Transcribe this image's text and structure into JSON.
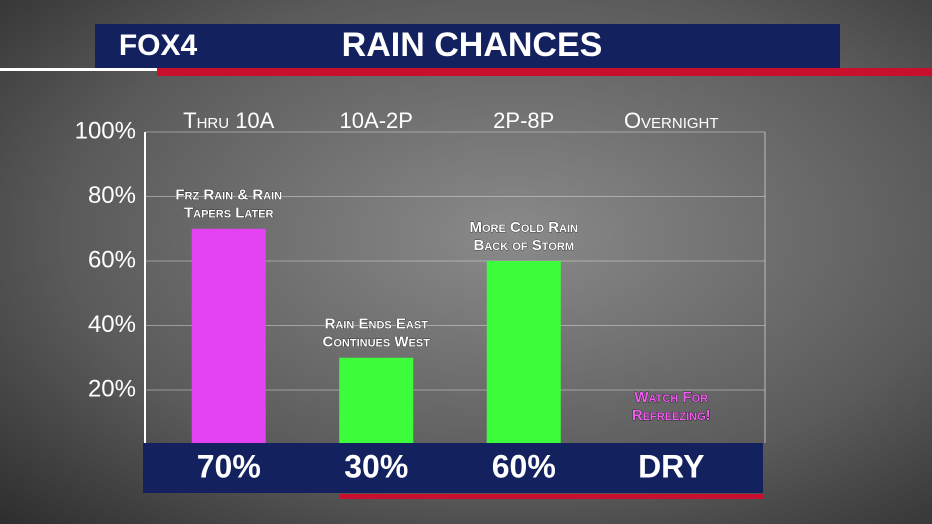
{
  "chart_data": {
    "type": "bar",
    "logo": "FOX4",
    "title": "RAIN CHANCES",
    "categories": [
      "Thru 10A",
      "10A-2P",
      "2P-8P",
      "Overnight"
    ],
    "values": [
      70,
      30,
      60,
      null
    ],
    "value_labels": [
      "70%",
      "30%",
      "60%",
      "DRY"
    ],
    "colors": [
      "#e443f2",
      "#3cfc3c",
      "#3cfc3c",
      "#3cfc3c"
    ],
    "annotations": [
      {
        "lines": [
          "Frz Rain & Rain",
          "Tapers Later"
        ],
        "color": "#ffffff"
      },
      {
        "lines": [
          "Rain Ends East",
          "Continues West"
        ],
        "color": "#ffffff"
      },
      {
        "lines": [
          "More Cold Rain",
          "Back of Storm"
        ],
        "color": "#ffffff"
      },
      {
        "lines": [
          "Watch For",
          "Refreezing!"
        ],
        "color": "#f05cf0"
      }
    ],
    "ylim": [
      0,
      100
    ],
    "yticks": [
      {
        "value": 20,
        "label": "20%"
      },
      {
        "value": 40,
        "label": "40%"
      },
      {
        "value": 60,
        "label": "60%"
      },
      {
        "value": 80,
        "label": "80%"
      },
      {
        "value": 100,
        "label": "100%"
      }
    ],
    "grid": true
  }
}
